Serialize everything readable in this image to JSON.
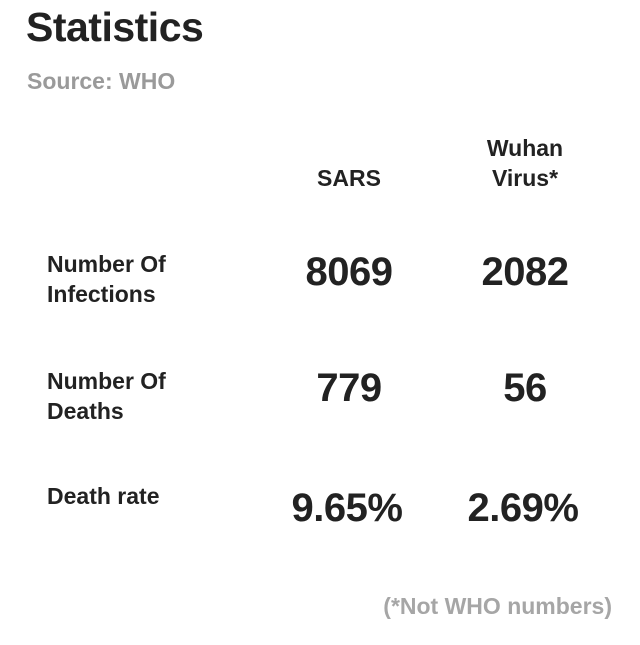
{
  "title": "Statistics",
  "source": "Source: WHO",
  "footnote": "(*Not WHO numbers)",
  "chart_data": {
    "type": "table",
    "columns": [
      "SARS",
      "Wuhan Virus*"
    ],
    "rows": [
      {
        "label": [
          "Number Of",
          "Infections"
        ],
        "values": [
          "8069",
          "2082"
        ]
      },
      {
        "label": [
          "Number Of",
          "Deaths"
        ],
        "values": [
          "779",
          "56"
        ]
      },
      {
        "label": [
          "Death rate"
        ],
        "values": [
          "9.65%",
          "2.69%"
        ]
      }
    ]
  }
}
